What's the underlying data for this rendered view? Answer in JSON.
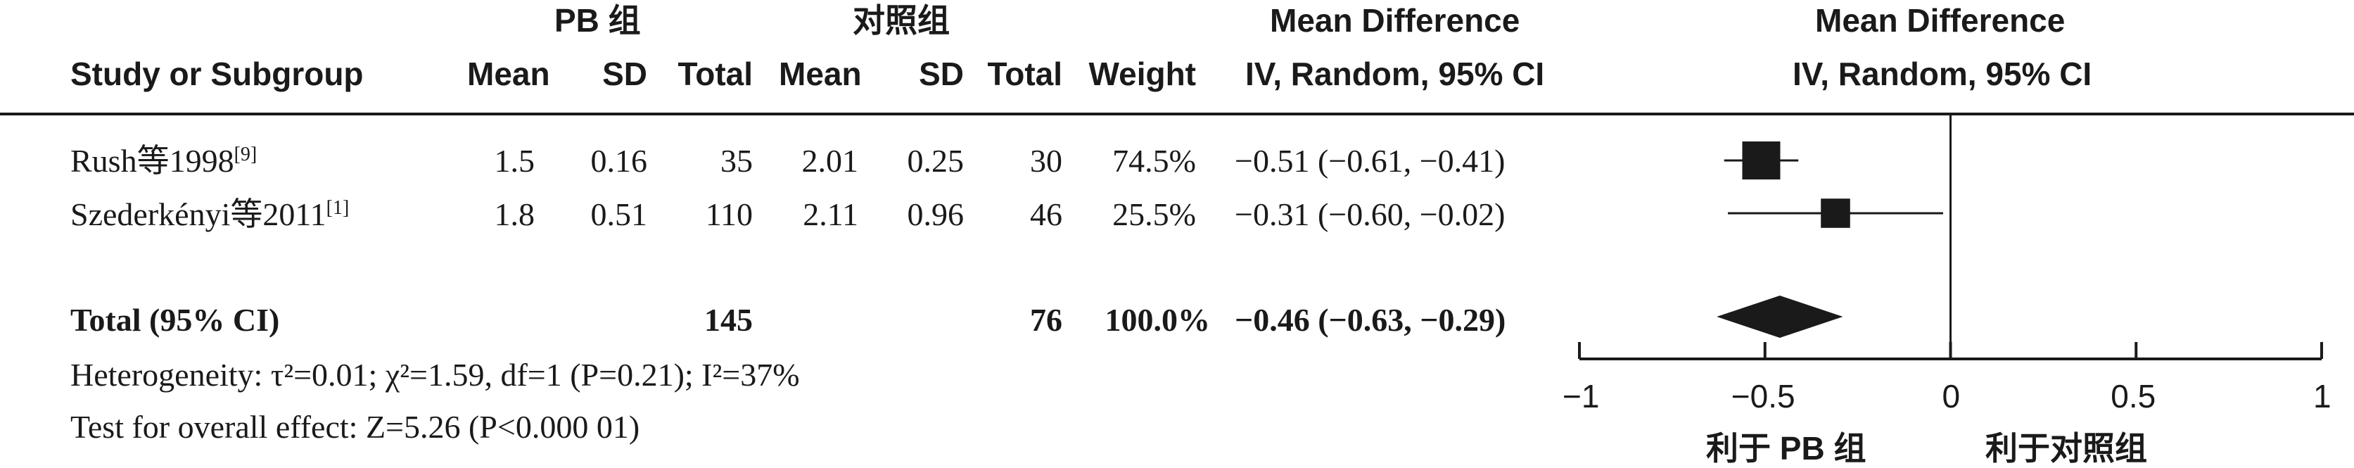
{
  "header": {
    "group1": "PB 组",
    "group2": "对照组",
    "md_table_title": "Mean Difference",
    "md_table_sub": "IV, Random, 95% CI",
    "md_plot_title": "Mean Difference",
    "md_plot_sub": "IV, Random, 95% CI",
    "study_col": "Study or Subgroup",
    "mean1": "Mean",
    "sd1": "SD",
    "total1": "Total",
    "mean2": "Mean",
    "sd2": "SD",
    "total2": "Total",
    "weight": "Weight"
  },
  "studies": [
    {
      "name": "Rush等1998",
      "ref": "[9]",
      "mean1": "1.5",
      "sd1": "0.16",
      "total1": "35",
      "mean2": "2.01",
      "sd2": "0.25",
      "total2": "30",
      "weight": "74.5%",
      "ci": "−0.51 (−0.61, −0.41)"
    },
    {
      "name": "Szederkényi等2011",
      "ref": "[1]",
      "mean1": "1.8",
      "sd1": "0.51",
      "total1": "110",
      "mean2": "2.11",
      "sd2": "0.96",
      "total2": "46",
      "weight": "25.5%",
      "ci": "−0.31 (−0.60, −0.02)"
    }
  ],
  "total": {
    "label": "Total (95% CI)",
    "total1": "145",
    "total2": "76",
    "weight": "100.0%",
    "ci": "−0.46 (−0.63, −0.29)"
  },
  "stats": {
    "heterogeneity": "Heterogeneity: τ²=0.01; χ²=1.59, df=1 (P=0.21); I²=37%",
    "overall": "Test for overall effect: Z=5.26 (P<0.000 01)"
  },
  "axis": {
    "ticks": [
      "−1",
      "−0.5",
      "0",
      "0.5",
      "1"
    ],
    "favours_left": "利于 PB 组",
    "favours_right": "利于对照组"
  },
  "chart_data": {
    "type": "forest",
    "xlim": [
      -1,
      1
    ],
    "tick_values": [
      -1,
      -0.5,
      0,
      0.5,
      1
    ],
    "null_line": 0,
    "points": [
      {
        "study": "Rush等1998",
        "md": -0.51,
        "lo": -0.61,
        "hi": -0.41,
        "weight": 74.5
      },
      {
        "study": "Szederkényi等2011",
        "md": -0.31,
        "lo": -0.6,
        "hi": -0.02,
        "weight": 25.5
      }
    ],
    "pooled": {
      "md": -0.46,
      "lo": -0.63,
      "hi": -0.29
    },
    "colors": {
      "ink": "#1a1a1a"
    }
  }
}
